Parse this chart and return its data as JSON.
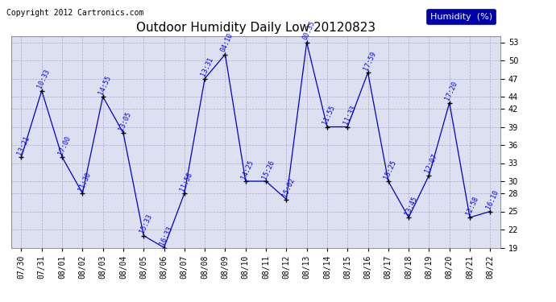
{
  "title": "Outdoor Humidity Daily Low 20120823",
  "copyright": "Copyright 2012 Cartronics.com",
  "legend_label": "Humidity  (%)",
  "ylim": [
    19,
    54
  ],
  "yticks": [
    19,
    22,
    25,
    28,
    30,
    33,
    36,
    39,
    42,
    44,
    47,
    50,
    53
  ],
  "line_color": "#0000cc",
  "marker": "+",
  "background_color": "#dce0f0",
  "grid_color": "#aaaacc",
  "data_points": [
    {
      "date": "07/30",
      "value": 34,
      "label": "13:21"
    },
    {
      "date": "07/31",
      "value": 45,
      "label": "10:33"
    },
    {
      "date": "08/01",
      "value": 34,
      "label": "17:00"
    },
    {
      "date": "08/02",
      "value": 28,
      "label": "11:30"
    },
    {
      "date": "08/03",
      "value": 44,
      "label": "14:55"
    },
    {
      "date": "08/04",
      "value": 38,
      "label": "13:05"
    },
    {
      "date": "08/05",
      "value": 21,
      "label": "15:33"
    },
    {
      "date": "08/06",
      "value": 19,
      "label": "16:33"
    },
    {
      "date": "08/07",
      "value": 28,
      "label": "11:58"
    },
    {
      "date": "08/08",
      "value": 47,
      "label": "13:31"
    },
    {
      "date": "08/09",
      "value": 51,
      "label": "04:10"
    },
    {
      "date": "08/10",
      "value": 30,
      "label": "14:25"
    },
    {
      "date": "08/11",
      "value": 30,
      "label": "15:26"
    },
    {
      "date": "08/12",
      "value": 27,
      "label": "15:02"
    },
    {
      "date": "08/13",
      "value": 53,
      "label": "00:35"
    },
    {
      "date": "08/14",
      "value": 39,
      "label": "11:55"
    },
    {
      "date": "08/15",
      "value": 39,
      "label": "11:33"
    },
    {
      "date": "08/16",
      "value": 48,
      "label": "17:59"
    },
    {
      "date": "08/17",
      "value": 30,
      "label": "15:25"
    },
    {
      "date": "08/18",
      "value": 24,
      "label": "13:45"
    },
    {
      "date": "08/19",
      "value": 31,
      "label": "12:07"
    },
    {
      "date": "08/20",
      "value": 43,
      "label": "17:20"
    },
    {
      "date": "08/21",
      "value": 24,
      "label": "12:58"
    },
    {
      "date": "08/22",
      "value": 25,
      "label": "16:10"
    }
  ],
  "title_fontsize": 11,
  "label_fontsize": 6,
  "tick_fontsize": 7,
  "legend_fontsize": 8,
  "copyright_fontsize": 7
}
